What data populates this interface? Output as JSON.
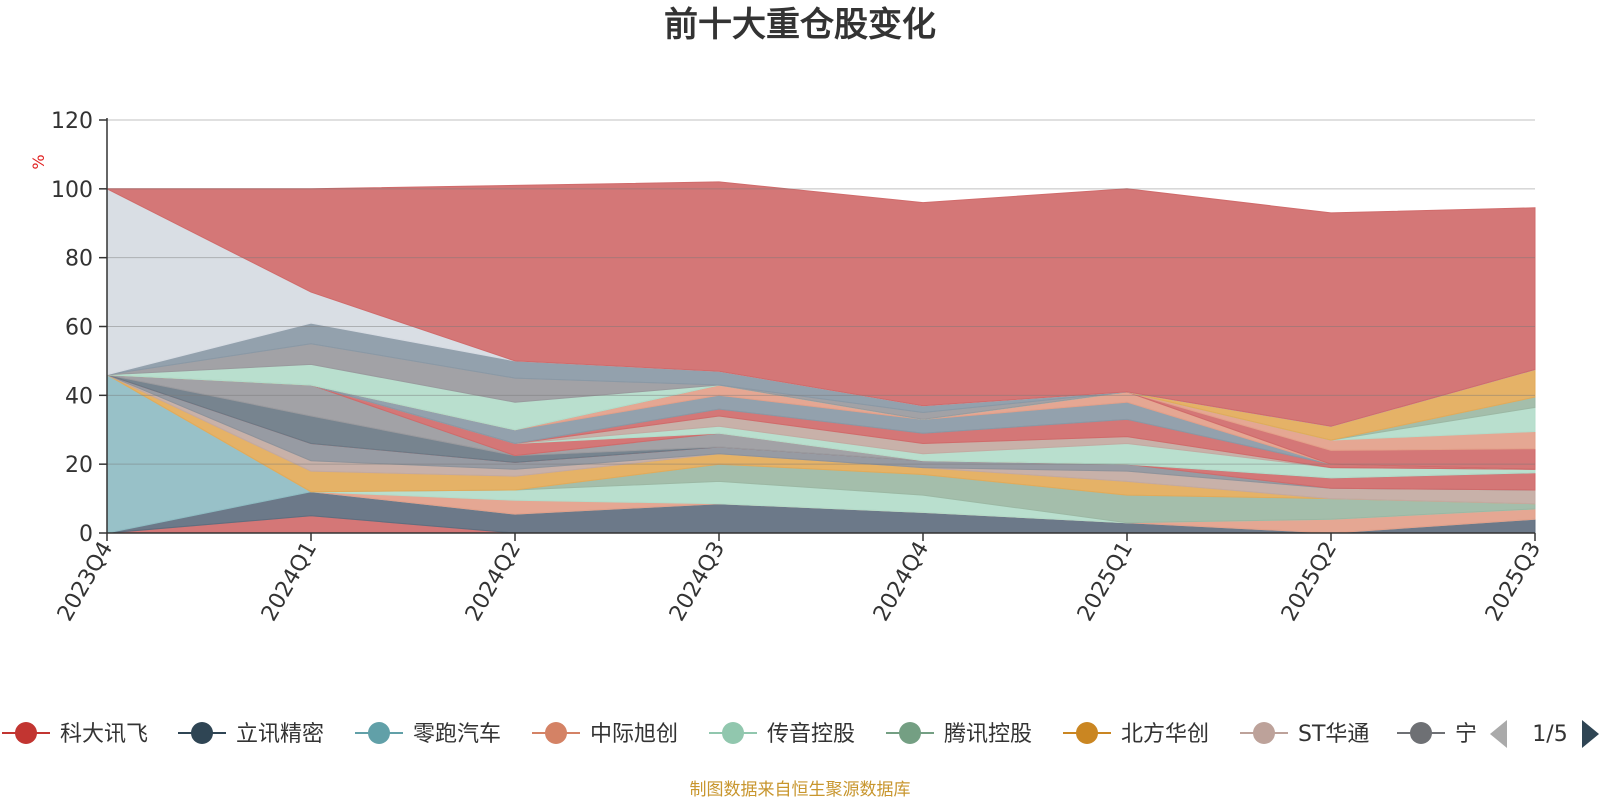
{
  "chart_data": {
    "type": "area",
    "stacked": true,
    "title": "前十大重仓股变化",
    "ylabel": "%",
    "ylim": [
      0,
      120
    ],
    "yticks": [
      0,
      20,
      40,
      60,
      80,
      100,
      120
    ],
    "grid": true,
    "categories": [
      "2023Q4",
      "2024Q1",
      "2024Q2",
      "2024Q3",
      "2024Q4",
      "2025Q1",
      "2025Q2",
      "2025Q3"
    ],
    "series": [
      {
        "name": "科大讯飞",
        "color": "#d06b6b",
        "values": [
          0,
          5,
          0,
          0,
          0,
          0,
          0,
          0
        ]
      },
      {
        "name": "立讯精密",
        "color": "#5f6e7f",
        "values": [
          0,
          7,
          5.5,
          8.5,
          6,
          3,
          0,
          4
        ]
      },
      {
        "name": "零跑汽车",
        "color": "#8fbcc3",
        "values": [
          46,
          0,
          0,
          0,
          0,
          0,
          0,
          0
        ]
      },
      {
        "name": "中际旭创",
        "color": "#e3a08a",
        "values": [
          0,
          0,
          4,
          0,
          0,
          0,
          4,
          3
        ]
      },
      {
        "name": "传音控股",
        "color": "#b3dcca",
        "values": [
          0,
          0,
          3,
          6.5,
          5,
          0,
          0,
          0
        ]
      },
      {
        "name": "腾讯控股",
        "color": "#9cb8a4",
        "values": [
          0,
          0,
          0,
          5,
          6,
          8,
          6,
          1.5
        ]
      },
      {
        "name": "北方华创",
        "color": "#e3ab5a",
        "values": [
          0,
          6,
          4,
          3,
          2,
          4,
          0,
          0
        ]
      },
      {
        "name": "ST华通",
        "color": "#c3aaa2",
        "values": [
          0,
          3,
          2,
          0,
          0,
          3,
          3,
          4
        ]
      },
      {
        "name": "宁",
        "color": "#8e939b",
        "values": [
          0,
          5,
          2,
          2,
          2,
          2,
          0,
          0
        ]
      },
      {
        "name": "",
        "color": "#d06b6b",
        "values": [
          0,
          0,
          0,
          0,
          0,
          0,
          3,
          5
        ]
      },
      {
        "name": "",
        "color": "#6b7985",
        "values": [
          0,
          8,
          2,
          0,
          0,
          0,
          0,
          0
        ]
      },
      {
        "name": "",
        "color": "#9a9a9e",
        "values": [
          0,
          9,
          0,
          4,
          0,
          0,
          0,
          0
        ]
      },
      {
        "name": "",
        "color": "#d06b6b",
        "values": [
          0,
          0,
          3.5,
          0,
          0,
          0,
          0,
          0
        ]
      },
      {
        "name": "",
        "color": "#b3dcca",
        "values": [
          0,
          0,
          0,
          2,
          2,
          6,
          3,
          1
        ]
      },
      {
        "name": "",
        "color": "#c3aaa2",
        "values": [
          0,
          0,
          0,
          3,
          3,
          2,
          0,
          0
        ]
      },
      {
        "name": "",
        "color": "#d06b6b",
        "values": [
          0,
          0,
          0,
          2,
          3,
          5,
          1,
          0
        ]
      },
      {
        "name": "",
        "color": "#8a99a6",
        "values": [
          0,
          0,
          4,
          4,
          4,
          5,
          0,
          0
        ]
      },
      {
        "name": "",
        "color": "#e3a08a",
        "values": [
          0,
          0,
          0,
          3,
          0,
          3,
          0,
          0
        ]
      },
      {
        "name": "",
        "color": "#d06b6b",
        "values": [
          0,
          0,
          0,
          0,
          0,
          0,
          4,
          6
        ]
      },
      {
        "name": "",
        "color": "#e3a08a",
        "values": [
          0,
          0,
          0,
          0,
          0,
          0,
          3,
          5
        ]
      },
      {
        "name": "",
        "color": "#b3dcca",
        "values": [
          0,
          0,
          0,
          0,
          0,
          0,
          0,
          7
        ]
      },
      {
        "name": "",
        "color": "#9cb8a4",
        "values": [
          0,
          0,
          0,
          0,
          0,
          0,
          0,
          3
        ]
      },
      {
        "name": "",
        "color": "#e3ab5a",
        "values": [
          0,
          0,
          0,
          0,
          0,
          0,
          4,
          8
        ]
      },
      {
        "name": "",
        "color": "#a7bcc9",
        "values": [
          0,
          0,
          0,
          0,
          0,
          0,
          0,
          0
        ]
      },
      {
        "name": "",
        "color": "#b3dcca",
        "values": [
          0,
          6,
          8,
          0,
          0,
          0,
          0,
          0
        ]
      },
      {
        "name": "",
        "color": "#9a9a9e",
        "values": [
          0,
          6,
          7,
          0,
          2,
          0,
          0,
          0
        ]
      },
      {
        "name": "",
        "color": "#8a99a6",
        "values": [
          0,
          6,
          5,
          4,
          2,
          0,
          0,
          0
        ]
      },
      {
        "name": "",
        "color": "#d6dbe2",
        "values": [
          54,
          9,
          0,
          0,
          0,
          0,
          0,
          0
        ]
      },
      {
        "name": "",
        "color": "#d06b6b",
        "values": [
          0,
          30,
          51,
          55,
          59,
          59,
          62,
          47
        ]
      }
    ]
  },
  "legend": {
    "items": [
      {
        "label": "科大讯飞",
        "color": "#c23531"
      },
      {
        "label": "立讯精密",
        "color": "#2f4554"
      },
      {
        "label": "零跑汽车",
        "color": "#61a0a8"
      },
      {
        "label": "中际旭创",
        "color": "#d48265"
      },
      {
        "label": "传音控股",
        "color": "#91c7ae"
      },
      {
        "label": "腾讯控股",
        "color": "#749f83"
      },
      {
        "label": "北方华创",
        "color": "#ca8622"
      },
      {
        "label": "ST华通",
        "color": "#bda29a"
      },
      {
        "label": "宁",
        "color": "#6e7074"
      }
    ],
    "page": "1/5",
    "prev_color": "#aaaaaa",
    "next_color": "#2f4554"
  },
  "footer": "制图数据来自恒生聚源数据库"
}
